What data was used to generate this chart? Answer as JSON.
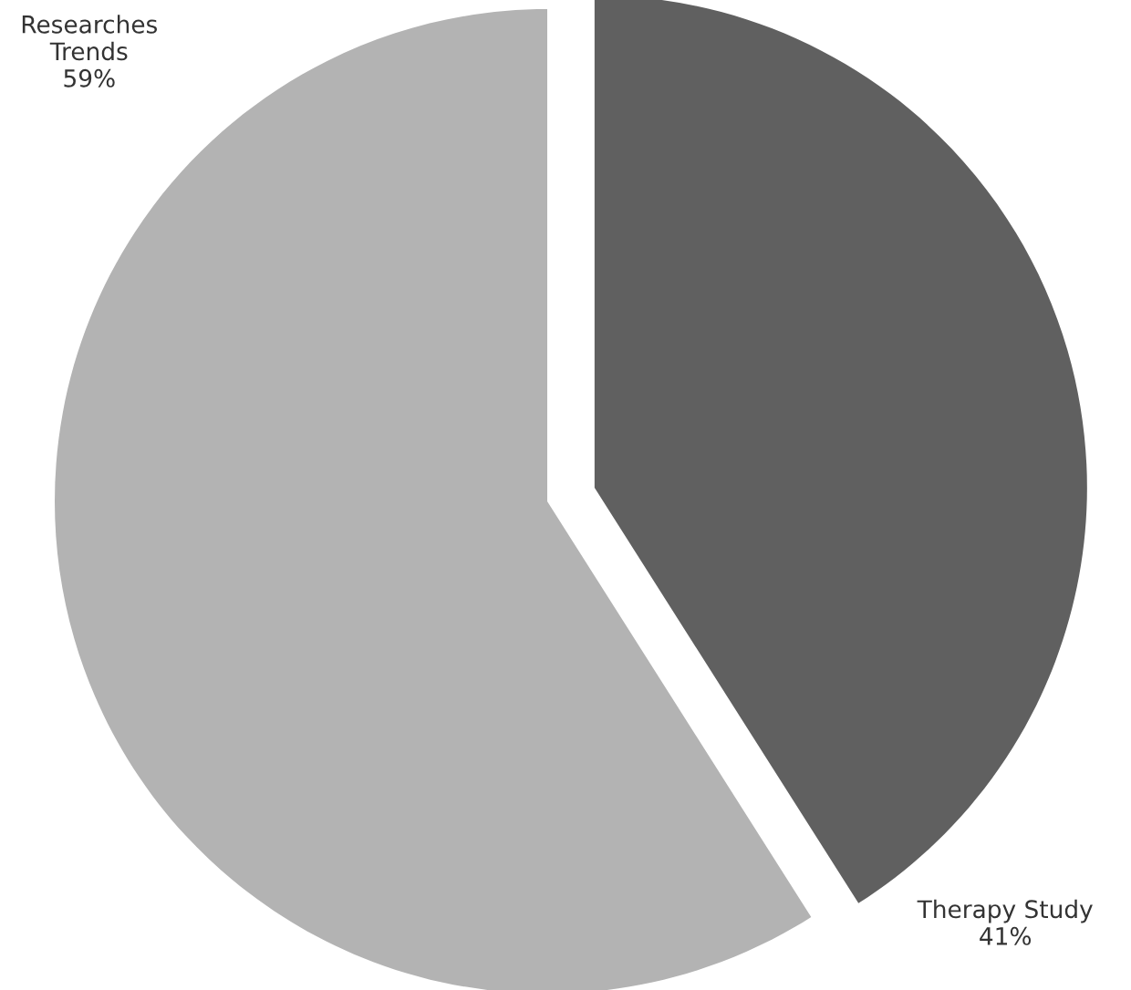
{
  "chart_data": {
    "type": "pie",
    "categories": [
      "Therapy Study",
      "Researches Trends"
    ],
    "values": [
      41,
      59
    ],
    "value_labels": [
      "41%",
      "59%"
    ],
    "colors": [
      "#606060",
      "#b3b3b3"
    ]
  }
}
